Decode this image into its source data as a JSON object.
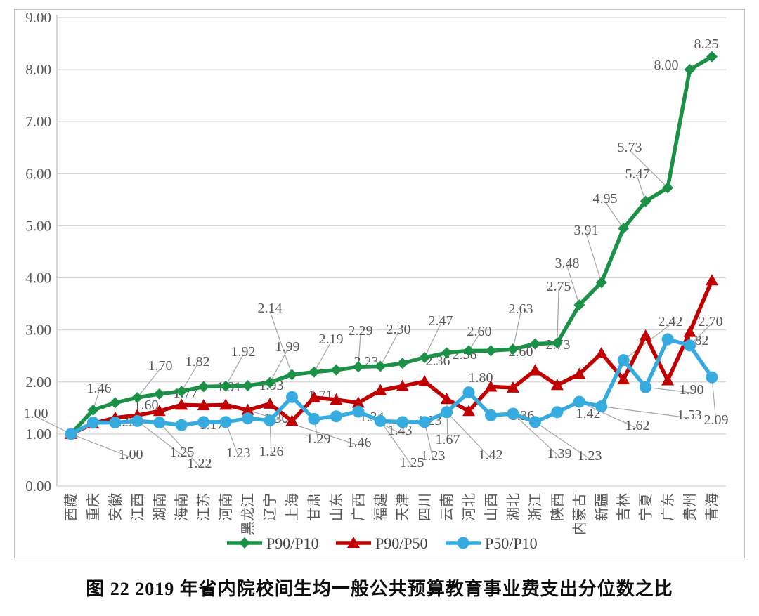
{
  "figure": {
    "title": "图 22  2019 年省内院校间生均一般公共预算教育事业费支出分位数之比"
  },
  "chart_data": {
    "type": "line",
    "title": "",
    "xlabel": "",
    "ylabel": "",
    "ylim": [
      0,
      9
    ],
    "ytick_step": 1,
    "ytick_decimals": 2,
    "grid": true,
    "legend_position": "bottom",
    "categories": [
      "西藏",
      "重庆",
      "安徽",
      "江西",
      "湖南",
      "海南",
      "江苏",
      "河南",
      "黑龙江",
      "辽宁",
      "上海",
      "甘肃",
      "山东",
      "广西",
      "福建",
      "天津",
      "四川",
      "云南",
      "河北",
      "山西",
      "湖北",
      "浙江",
      "陕西",
      "内蒙古",
      "新疆",
      "吉林",
      "宁夏",
      "广东",
      "贵州",
      "青海"
    ],
    "series": [
      {
        "name": "P90/P10",
        "marker": "diamond",
        "color": "#1b9148",
        "values": [
          1.0,
          1.46,
          1.6,
          1.7,
          1.77,
          1.82,
          1.91,
          1.92,
          1.93,
          1.99,
          2.14,
          2.19,
          2.23,
          2.29,
          2.3,
          2.36,
          2.47,
          2.56,
          2.6,
          2.6,
          2.63,
          2.73,
          2.75,
          3.48,
          3.91,
          4.95,
          5.47,
          5.73,
          8.0,
          8.25
        ]
      },
      {
        "name": "P90/P50",
        "marker": "triangle",
        "color": "#c00000",
        "values": [
          1.0,
          1.2,
          1.31,
          1.36,
          1.44,
          1.56,
          1.55,
          1.56,
          1.46,
          1.58,
          1.25,
          1.7,
          1.66,
          1.6,
          1.84,
          1.92,
          2.01,
          1.67,
          1.44,
          1.91,
          1.89,
          2.22,
          1.94,
          2.15,
          2.55,
          2.05,
          2.89,
          2.03,
          2.96,
          3.95
        ]
      },
      {
        "name": "P50/P10",
        "marker": "circle",
        "color": "#36abe0",
        "values": [
          1.0,
          1.22,
          1.22,
          1.25,
          1.22,
          1.17,
          1.23,
          1.23,
          1.3,
          1.26,
          1.71,
          1.29,
          1.34,
          1.43,
          1.25,
          1.23,
          1.23,
          1.42,
          1.8,
          1.36,
          1.39,
          1.23,
          1.42,
          1.62,
          1.53,
          2.42,
          1.9,
          2.82,
          2.7,
          2.09
        ]
      }
    ],
    "colors": {
      "gridline": "#d6d6d6",
      "axis_line": "#bfbfbf",
      "tick_label": "#595959",
      "data_label": "#595959",
      "leader_line": "#a6a6a6",
      "legend_text": "#404040",
      "frame_border": "#c3c3c3"
    }
  }
}
